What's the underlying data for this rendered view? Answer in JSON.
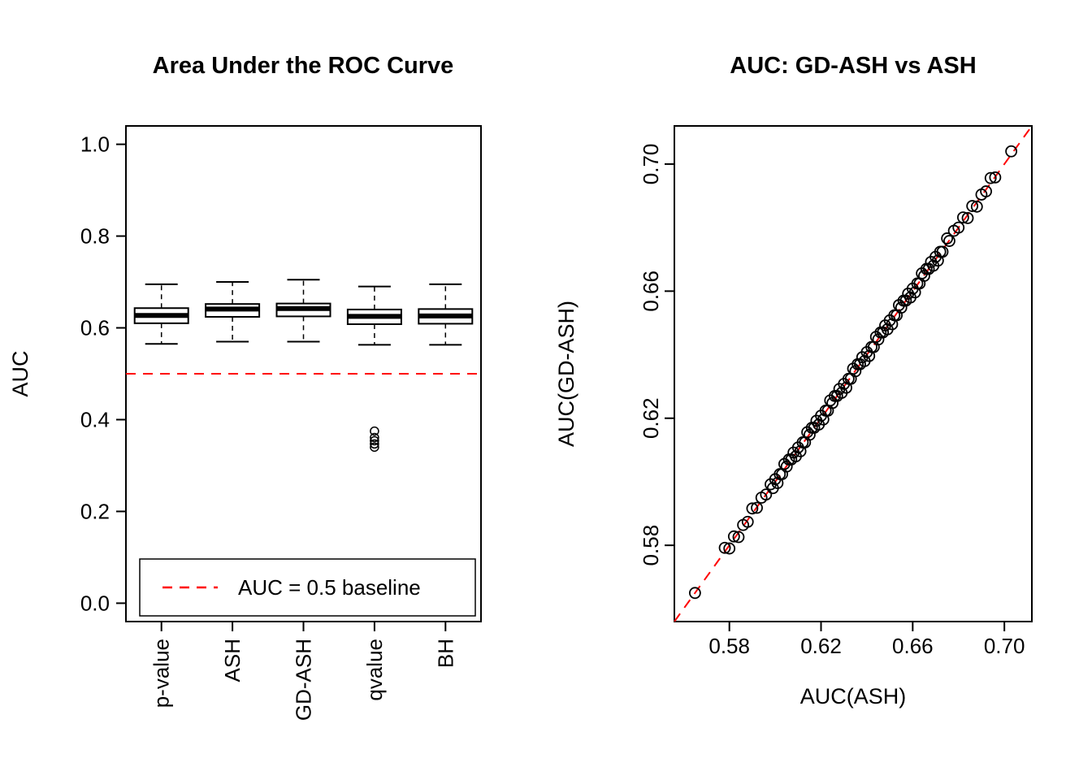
{
  "page": {
    "background": "#FFFFFF"
  },
  "chart_data": [
    {
      "type": "boxplot",
      "title": "Area Under the ROC Curve",
      "ylabel": "AUC",
      "ylim": [
        -0.04,
        1.04
      ],
      "yticks": [
        0.0,
        0.2,
        0.4,
        0.6,
        0.8,
        1.0
      ],
      "ytick_labels": [
        "0.0",
        "0.2",
        "0.4",
        "0.6",
        "0.8",
        "1.0"
      ],
      "categories": [
        "p-value",
        "ASH",
        "GD-ASH",
        "qvalue",
        "BH"
      ],
      "boxes": [
        {
          "label": "p-value",
          "whisker_low": 0.565,
          "q1": 0.61,
          "median": 0.627,
          "q3": 0.643,
          "whisker_high": 0.695,
          "outliers": []
        },
        {
          "label": "ASH",
          "whisker_low": 0.57,
          "q1": 0.624,
          "median": 0.641,
          "q3": 0.652,
          "whisker_high": 0.7,
          "outliers": []
        },
        {
          "label": "GD-ASH",
          "whisker_low": 0.57,
          "q1": 0.625,
          "median": 0.642,
          "q3": 0.653,
          "whisker_high": 0.705,
          "outliers": []
        },
        {
          "label": "qvalue",
          "whisker_low": 0.563,
          "q1": 0.608,
          "median": 0.625,
          "q3": 0.64,
          "whisker_high": 0.69,
          "outliers": [
            0.34,
            0.347,
            0.354,
            0.361,
            0.375
          ]
        },
        {
          "label": "BH",
          "whisker_low": 0.563,
          "q1": 0.609,
          "median": 0.626,
          "q3": 0.641,
          "whisker_high": 0.695,
          "outliers": []
        }
      ],
      "baseline": {
        "value": 0.5,
        "color": "#FF0000",
        "style": "dashed"
      },
      "legend": {
        "label": "AUC = 0.5 baseline",
        "line_color": "#FF0000",
        "line_style": "dashed",
        "position": "bottom-left"
      },
      "grid": false
    },
    {
      "type": "scatter",
      "title": "AUC: GD-ASH vs ASH",
      "xlabel": "AUC(ASH)",
      "ylabel": "AUC(GD-ASH)",
      "xlim": [
        0.556,
        0.712
      ],
      "ylim": [
        0.556,
        0.712
      ],
      "xticks": [
        0.58,
        0.62,
        0.66,
        0.7
      ],
      "xtick_labels": [
        "0.58",
        "0.62",
        "0.66",
        "0.70"
      ],
      "yticks": [
        0.58,
        0.62,
        0.66,
        0.7
      ],
      "ytick_labels": [
        "0.58",
        "0.62",
        "0.66",
        "0.70"
      ],
      "identity_line": {
        "color": "#FF0000",
        "style": "dashed"
      },
      "point_style": {
        "marker": "open-circle",
        "color": "#000000"
      },
      "grid": false,
      "points": [
        [
          0.565,
          0.565
        ],
        [
          0.578,
          0.5792
        ],
        [
          0.58,
          0.579
        ],
        [
          0.582,
          0.5828
        ],
        [
          0.584,
          0.5826
        ],
        [
          0.586,
          0.5864
        ],
        [
          0.588,
          0.5874
        ],
        [
          0.59,
          0.5916
        ],
        [
          0.592,
          0.5918
        ],
        [
          0.594,
          0.595
        ],
        [
          0.596,
          0.596
        ],
        [
          0.598,
          0.5992
        ],
        [
          0.599,
          0.598
        ],
        [
          0.6,
          0.6008
        ],
        [
          0.601,
          0.5996
        ],
        [
          0.602,
          0.6024
        ],
        [
          0.603,
          0.6024
        ],
        [
          0.604,
          0.6056
        ],
        [
          0.605,
          0.6048
        ],
        [
          0.606,
          0.607
        ],
        [
          0.607,
          0.607
        ],
        [
          0.608,
          0.6092
        ],
        [
          0.609,
          0.608
        ],
        [
          0.61,
          0.6108
        ],
        [
          0.611,
          0.6096
        ],
        [
          0.612,
          0.6124
        ],
        [
          0.613,
          0.6124
        ],
        [
          0.614,
          0.6156
        ],
        [
          0.615,
          0.6148
        ],
        [
          0.616,
          0.617
        ],
        [
          0.617,
          0.617
        ],
        [
          0.618,
          0.6192
        ],
        [
          0.619,
          0.618
        ],
        [
          0.62,
          0.6208
        ],
        [
          0.621,
          0.6196
        ],
        [
          0.622,
          0.6224
        ],
        [
          0.623,
          0.6224
        ],
        [
          0.624,
          0.6256
        ],
        [
          0.625,
          0.6248
        ],
        [
          0.626,
          0.627
        ],
        [
          0.627,
          0.627
        ],
        [
          0.628,
          0.6292
        ],
        [
          0.629,
          0.628
        ],
        [
          0.63,
          0.6308
        ],
        [
          0.631,
          0.6296
        ],
        [
          0.632,
          0.6324
        ],
        [
          0.633,
          0.6324
        ],
        [
          0.634,
          0.6356
        ],
        [
          0.635,
          0.6348
        ],
        [
          0.636,
          0.637
        ],
        [
          0.637,
          0.637
        ],
        [
          0.638,
          0.6392
        ],
        [
          0.639,
          0.638
        ],
        [
          0.64,
          0.6408
        ],
        [
          0.641,
          0.6396
        ],
        [
          0.642,
          0.6424
        ],
        [
          0.643,
          0.6424
        ],
        [
          0.644,
          0.6456
        ],
        [
          0.645,
          0.6448
        ],
        [
          0.646,
          0.647
        ],
        [
          0.647,
          0.647
        ],
        [
          0.648,
          0.6492
        ],
        [
          0.649,
          0.648
        ],
        [
          0.65,
          0.6508
        ],
        [
          0.651,
          0.6496
        ],
        [
          0.652,
          0.6524
        ],
        [
          0.653,
          0.6524
        ],
        [
          0.654,
          0.6556
        ],
        [
          0.655,
          0.6548
        ],
        [
          0.656,
          0.657
        ],
        [
          0.657,
          0.657
        ],
        [
          0.658,
          0.6592
        ],
        [
          0.659,
          0.658
        ],
        [
          0.66,
          0.6608
        ],
        [
          0.661,
          0.6596
        ],
        [
          0.662,
          0.6624
        ],
        [
          0.663,
          0.6624
        ],
        [
          0.664,
          0.6656
        ],
        [
          0.665,
          0.6648
        ],
        [
          0.666,
          0.667
        ],
        [
          0.667,
          0.667
        ],
        [
          0.668,
          0.6692
        ],
        [
          0.669,
          0.668
        ],
        [
          0.67,
          0.6708
        ],
        [
          0.671,
          0.6696
        ],
        [
          0.672,
          0.6724
        ],
        [
          0.673,
          0.6724
        ],
        [
          0.675,
          0.6766
        ],
        [
          0.676,
          0.6758
        ],
        [
          0.678,
          0.679
        ],
        [
          0.68,
          0.68
        ],
        [
          0.682,
          0.6832
        ],
        [
          0.684,
          0.683
        ],
        [
          0.686,
          0.6868
        ],
        [
          0.688,
          0.6866
        ],
        [
          0.69,
          0.6904
        ],
        [
          0.692,
          0.6914
        ],
        [
          0.694,
          0.6956
        ],
        [
          0.696,
          0.6958
        ],
        [
          0.703,
          0.704
        ]
      ]
    }
  ]
}
